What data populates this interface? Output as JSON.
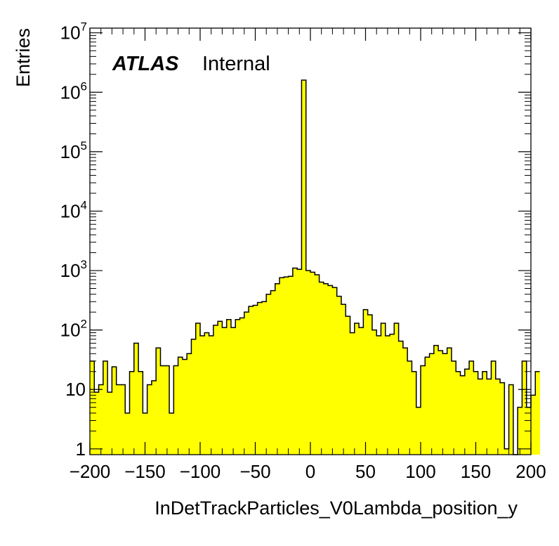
{
  "chart_data": {
    "type": "bar",
    "style": "step-histogram",
    "xlabel": "InDetTrackParticles_V0Lambda_position_y",
    "ylabel": "Entries",
    "label_bold": "ATLAS",
    "label_text": "Internal",
    "xlim": [
      -200,
      200
    ],
    "ylim": [
      0.8,
      12000000
    ],
    "yscale": "log",
    "fill_color": "#ffff00",
    "line_color": "#000000",
    "x_ticks": [
      -200,
      -150,
      -100,
      -50,
      0,
      50,
      100,
      150,
      200
    ],
    "x_tick_labels": [
      "−200",
      "−150",
      "−100",
      "−50",
      "0",
      "50",
      "100",
      "150",
      "200"
    ],
    "y_ticks": [
      {
        "value": 1,
        "base": "1",
        "exp": ""
      },
      {
        "value": 10,
        "base": "10",
        "exp": ""
      },
      {
        "value": 100,
        "base": "10",
        "exp": "2"
      },
      {
        "value": 1000,
        "base": "10",
        "exp": "3"
      },
      {
        "value": 10000,
        "base": "10",
        "exp": "4"
      },
      {
        "value": 100000,
        "base": "10",
        "exp": "5"
      },
      {
        "value": 1000000,
        "base": "10",
        "exp": "6"
      },
      {
        "value": 10000000,
        "base": "10",
        "exp": "7"
      }
    ],
    "bin_edges_start": -200,
    "bin_width": 4,
    "values": [
      30,
      9,
      12,
      30,
      9,
      24,
      12,
      12,
      4,
      20,
      60,
      20,
      4,
      12,
      14,
      50,
      25,
      25,
      4,
      25,
      35,
      32,
      40,
      70,
      130,
      80,
      90,
      80,
      120,
      140,
      110,
      150,
      110,
      150,
      160,
      200,
      250,
      260,
      290,
      300,
      400,
      460,
      600,
      760,
      780,
      800,
      1100,
      1050,
      1600000,
      1000,
      940,
      850,
      640,
      600,
      560,
      520,
      370,
      270,
      170,
      90,
      130,
      110,
      220,
      180,
      100,
      80,
      130,
      80,
      85,
      130,
      65,
      50,
      30,
      20,
      5,
      25,
      35,
      40,
      55,
      45,
      40,
      50,
      30,
      20,
      17,
      22,
      30,
      20,
      15,
      20,
      15,
      30,
      15,
      13,
      1,
      12,
      0,
      5,
      30,
      5,
      8,
      20
    ]
  }
}
